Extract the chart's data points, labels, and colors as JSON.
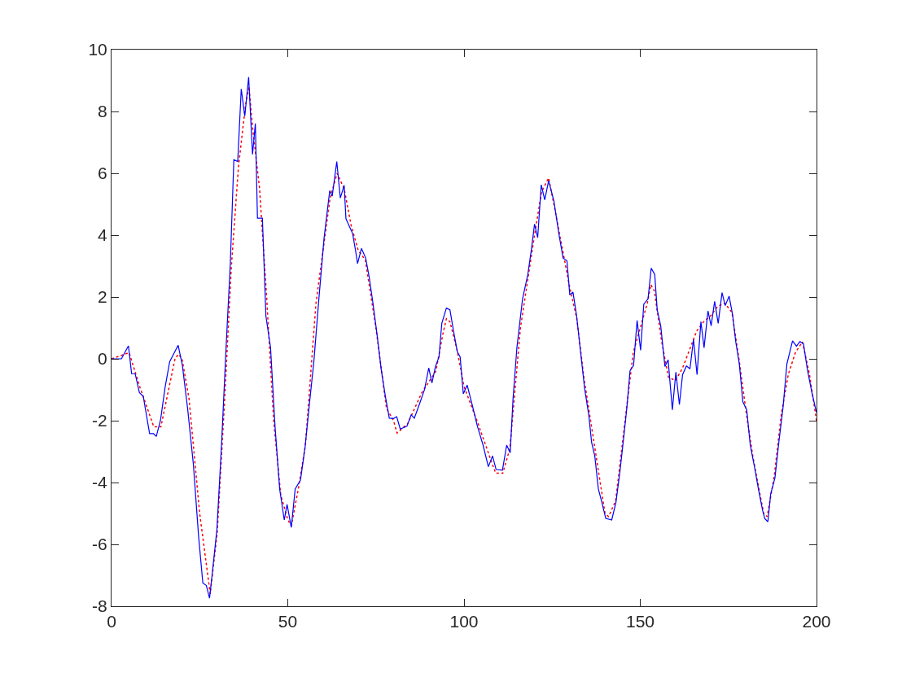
{
  "chart_data": {
    "type": "line",
    "xlim": [
      0,
      200
    ],
    "ylim": [
      -8,
      10
    ],
    "xticks": [
      0,
      50,
      100,
      150,
      200
    ],
    "yticks": [
      -8,
      -6,
      -4,
      -2,
      0,
      2,
      4,
      6,
      8,
      10
    ],
    "grid": false,
    "marker": "none",
    "series": [
      {
        "color": "#ff0000",
        "line_style": "dotted",
        "x": [
          0,
          5,
          8,
          12,
          14,
          16,
          18,
          19,
          20,
          22,
          25,
          28,
          30,
          32,
          34,
          36,
          38,
          39,
          40,
          42,
          44,
          46,
          48,
          50,
          51,
          53,
          55,
          58,
          62,
          64,
          66,
          68,
          70,
          72,
          75,
          78,
          80,
          81,
          84,
          88,
          92,
          94,
          95,
          96,
          98,
          100,
          104,
          108,
          109,
          111,
          113,
          114,
          116,
          120,
          122,
          124,
          126,
          128,
          130,
          132,
          134,
          137,
          140,
          141,
          143,
          146,
          148,
          150,
          152,
          153,
          154,
          156,
          158,
          160,
          162,
          164,
          166,
          168,
          170,
          172,
          174,
          176,
          178,
          180,
          182,
          185,
          186,
          188,
          190,
          192,
          194,
          196,
          198,
          200
        ],
        "values": [
          0,
          0.2,
          -0.9,
          -2.2,
          -2.2,
          -1.1,
          0,
          0.15,
          0,
          -1.3,
          -5,
          -7.6,
          -5.6,
          -1.5,
          3,
          6.2,
          8.2,
          8.8,
          7.5,
          5.5,
          2,
          -2,
          -4.4,
          -5.2,
          -5.4,
          -4.2,
          -2.8,
          1.8,
          5.2,
          6,
          5.5,
          4.3,
          3.5,
          3.2,
          1,
          -1.6,
          -2,
          -2.4,
          -2.1,
          -1.1,
          -0.4,
          0.8,
          1.3,
          1.2,
          0.3,
          -0.9,
          -2.1,
          -3.4,
          -3.7,
          -3.7,
          -2.9,
          -1.6,
          1,
          4,
          5.4,
          5.85,
          4.7,
          3.5,
          2.3,
          1.3,
          -0.6,
          -2.8,
          -5,
          -5.1,
          -4.6,
          -1.7,
          0.2,
          1,
          1.8,
          2.4,
          2.2,
          0.6,
          -0.6,
          -0.7,
          -0.3,
          0.3,
          0.9,
          1.2,
          1.4,
          1.7,
          1.8,
          1.5,
          0,
          -1.7,
          -3.2,
          -5,
          -5.1,
          -3.8,
          -1.8,
          -0.5,
          0.2,
          0.55,
          -0.5,
          -2
        ]
      },
      {
        "color": "#0000ff",
        "line_style": "solid",
        "x": [
          0,
          2.8,
          4.8,
          5.7,
          6.7,
          7.9,
          9,
          10.8,
          11.9,
          12.7,
          13.9,
          15.2,
          16.5,
          18.9,
          20.1,
          21.6,
          23.2,
          24.7,
          25.9,
          26.9,
          27.8,
          28.6,
          29.9,
          31.2,
          32.5,
          33.7,
          34.7,
          35.8,
          36.8,
          37.8,
          38.9,
          39.4,
          40,
          40.8,
          41.4,
          42.8,
          43.8,
          45.1,
          46.4,
          47.7,
          49,
          49.8,
          51,
          52.1,
          53.6,
          54.9,
          56.2,
          57.4,
          58.8,
          60.3,
          61.9,
          62.6,
          63.9,
          64.9,
          66,
          66.5,
          68.4,
          69.2,
          69.8,
          70.9,
          72.1,
          73.1,
          74.2,
          75.4,
          76.5,
          77.7,
          78.8,
          80,
          80.9,
          81.9,
          83.8,
          85,
          85.9,
          87.3,
          88.8,
          90,
          90.9,
          91.9,
          92.9,
          93.7,
          95,
          96,
          96.9,
          98.1,
          98.9,
          99.8,
          100.9,
          102.3,
          103.8,
          105.4,
          106.9,
          108.1,
          109.1,
          110.9,
          112.1,
          113.1,
          113.9,
          115,
          116.6,
          118.1,
          119.2,
          120,
          120.9,
          121.9,
          122.9,
          124,
          125.5,
          126.9,
          128.1,
          129.2,
          130,
          130.9,
          131.9,
          133.1,
          134.2,
          135.4,
          136.2,
          137.1,
          138.1,
          139.1,
          140.2,
          141.9,
          143.1,
          144.2,
          145.4,
          146.2,
          147.1,
          148.1,
          149.1,
          150.1,
          151,
          152.2,
          153.1,
          154.1,
          154.8,
          155.8,
          157,
          157.9,
          159.1,
          160.1,
          161.1,
          162,
          163.1,
          164.1,
          165.1,
          166.1,
          167.2,
          168.1,
          169.2,
          170.1,
          171.1,
          172.1,
          173.2,
          174.1,
          175.2,
          176.2,
          177.1,
          178.1,
          179.1,
          180.2,
          181.2,
          182.4,
          183.5,
          184.7,
          185.3,
          186.2,
          187,
          188.2,
          189.3,
          190.5,
          191.6,
          193.2,
          194.3,
          195.3,
          196.3,
          197.4,
          198.6,
          200
        ],
        "values": [
          0,
          0,
          0.42,
          -0.48,
          -0.48,
          -1.09,
          -1.21,
          -2.42,
          -2.42,
          -2.51,
          -1.98,
          -0.92,
          -0.09,
          0.44,
          -0.21,
          -1.62,
          -3.39,
          -5.74,
          -7.25,
          -7.33,
          -7.74,
          -6.92,
          -5.51,
          -2.8,
          0.38,
          3.08,
          6.44,
          6.38,
          8.73,
          7.85,
          9.11,
          7.96,
          6.61,
          7.61,
          4.55,
          4.55,
          1.38,
          0.38,
          -2.21,
          -4.21,
          -5.21,
          -4.71,
          -5.45,
          -4.21,
          -3.92,
          -2.86,
          -1.39,
          -0.09,
          1.91,
          3.91,
          5.44,
          5.26,
          6.38,
          5.2,
          5.61,
          4.53,
          4.05,
          3.52,
          3.08,
          3.57,
          3.26,
          2.64,
          1.77,
          0.72,
          -0.34,
          -1.22,
          -1.92,
          -1.93,
          -1.87,
          -2.27,
          -2.18,
          -1.81,
          -1.92,
          -1.48,
          -0.99,
          -0.29,
          -0.78,
          -0.25,
          0.06,
          1.15,
          1.64,
          1.59,
          0.98,
          0.23,
          0.06,
          -1.13,
          -0.85,
          -1.48,
          -2.18,
          -2.79,
          -3.49,
          -3.14,
          -3.58,
          -3.6,
          -2.79,
          -3.04,
          -1.3,
          0.36,
          1.94,
          2.73,
          3.61,
          4.36,
          3.92,
          5.63,
          5.14,
          5.76,
          5.1,
          4.05,
          3.26,
          3.17,
          2.07,
          2.16,
          1.42,
          0.19,
          -0.95,
          -1.83,
          -2.71,
          -3.14,
          -4.2,
          -4.64,
          -5.16,
          -5.21,
          -4.64,
          -3.67,
          -2.44,
          -1.57,
          -0.38,
          -0.21,
          1.24,
          0.28,
          1.77,
          1.94,
          2.93,
          2.73,
          1.59,
          1.07,
          -0.25,
          -0.03,
          -1.65,
          -0.43,
          -1.48,
          -0.51,
          -0.23,
          -0.32,
          0.63,
          -0.51,
          1.2,
          0.36,
          1.55,
          1.07,
          1.86,
          1.15,
          2.14,
          1.72,
          2.03,
          1.42,
          0.54,
          -0.16,
          -1.39,
          -1.65,
          -2.79,
          -3.49,
          -4.2,
          -4.9,
          -5.16,
          -5.27,
          -4.37,
          -3.85,
          -2.71,
          -1.57,
          -0.16,
          0.58,
          0.41,
          0.56,
          0.49,
          -0.34,
          -1.04,
          -1.74
        ]
      }
    ]
  }
}
